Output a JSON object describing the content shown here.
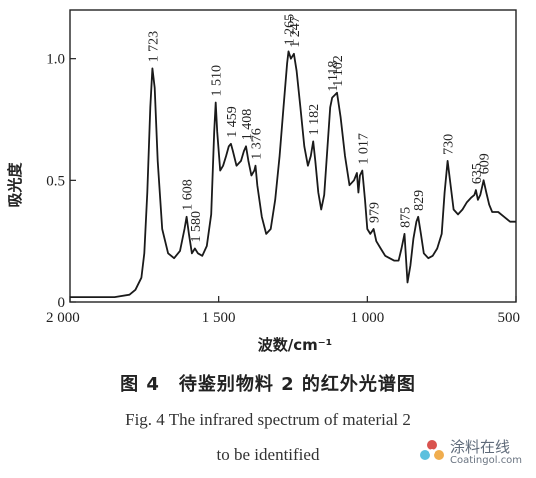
{
  "chart_data": {
    "type": "line",
    "xlabel": "波数/cm⁻¹",
    "ylabel": "吸光度",
    "xlim": [
      2000,
      500
    ],
    "ylim": [
      0,
      1.2
    ],
    "x_reversed": true,
    "grid": false,
    "legend": "none",
    "x_ticks": [
      {
        "value": 2000,
        "label": "2 000"
      },
      {
        "value": 1500,
        "label": "1 500"
      },
      {
        "value": 1000,
        "label": "1 000"
      },
      {
        "value": 500,
        "label": "500"
      }
    ],
    "y_ticks": [
      {
        "value": 0,
        "label": "0"
      },
      {
        "value": 0.5,
        "label": "0.5"
      },
      {
        "value": 1.0,
        "label": "1.0"
      }
    ],
    "series": [
      {
        "x": [
          2000,
          1850,
          1800,
          1780,
          1760,
          1750,
          1740,
          1730,
          1723,
          1715,
          1705,
          1690,
          1670,
          1650,
          1630,
          1615,
          1608,
          1600,
          1590,
          1580,
          1570,
          1555,
          1540,
          1525,
          1515,
          1510,
          1505,
          1495,
          1485,
          1475,
          1466,
          1459,
          1452,
          1440,
          1425,
          1415,
          1408,
          1400,
          1390,
          1380,
          1376,
          1370,
          1355,
          1340,
          1325,
          1310,
          1295,
          1282,
          1270,
          1265,
          1257,
          1247,
          1238,
          1225,
          1212,
          1200,
          1190,
          1182,
          1175,
          1165,
          1155,
          1145,
          1135,
          1125,
          1118,
          1110,
          1102,
          1090,
          1075,
          1060,
          1045,
          1035,
          1030,
          1025,
          1017,
          1008,
          1000,
          990,
          979,
          970,
          955,
          940,
          925,
          910,
          895,
          885,
          875,
          865,
          855,
          845,
          835,
          829,
          820,
          810,
          795,
          780,
          765,
          750,
          740,
          730,
          720,
          710,
          695,
          680,
          665,
          650,
          640,
          635,
          628,
          620,
          609,
          600,
          590,
          580,
          560,
          540,
          520,
          500
        ],
        "y": [
          0.02,
          0.02,
          0.03,
          0.05,
          0.1,
          0.2,
          0.45,
          0.8,
          0.96,
          0.88,
          0.58,
          0.3,
          0.2,
          0.18,
          0.21,
          0.3,
          0.35,
          0.28,
          0.2,
          0.22,
          0.2,
          0.19,
          0.23,
          0.36,
          0.7,
          0.82,
          0.7,
          0.54,
          0.56,
          0.6,
          0.64,
          0.65,
          0.62,
          0.56,
          0.58,
          0.62,
          0.64,
          0.58,
          0.52,
          0.54,
          0.56,
          0.48,
          0.35,
          0.28,
          0.3,
          0.42,
          0.6,
          0.8,
          0.98,
          1.03,
          1.0,
          1.02,
          0.95,
          0.8,
          0.64,
          0.56,
          0.6,
          0.66,
          0.58,
          0.45,
          0.38,
          0.44,
          0.62,
          0.8,
          0.84,
          0.85,
          0.86,
          0.76,
          0.6,
          0.48,
          0.5,
          0.53,
          0.45,
          0.52,
          0.54,
          0.42,
          0.3,
          0.28,
          0.3,
          0.25,
          0.22,
          0.19,
          0.18,
          0.17,
          0.17,
          0.22,
          0.28,
          0.08,
          0.15,
          0.26,
          0.33,
          0.35,
          0.28,
          0.2,
          0.18,
          0.19,
          0.22,
          0.28,
          0.45,
          0.58,
          0.48,
          0.38,
          0.36,
          0.38,
          0.41,
          0.43,
          0.44,
          0.46,
          0.42,
          0.44,
          0.5,
          0.45,
          0.4,
          0.37,
          0.37,
          0.35,
          0.33,
          0.33
        ]
      }
    ],
    "annotations": [
      {
        "label": "1 723",
        "x": 1723,
        "y": 0.96
      },
      {
        "label": "1 608",
        "x": 1608,
        "y": 0.35
      },
      {
        "label": "1 580",
        "x": 1580,
        "y": 0.22
      },
      {
        "label": "1 510",
        "x": 1510,
        "y": 0.82
      },
      {
        "label": "1 459",
        "x": 1459,
        "y": 0.65
      },
      {
        "label": "1 408",
        "x": 1408,
        "y": 0.64
      },
      {
        "label": "1 376",
        "x": 1376,
        "y": 0.56
      },
      {
        "label": "1 265",
        "x": 1265,
        "y": 1.03
      },
      {
        "label": "1 247",
        "x": 1247,
        "y": 1.02
      },
      {
        "label": "1 182",
        "x": 1182,
        "y": 0.66
      },
      {
        "label": "1 118",
        "x": 1118,
        "y": 0.84
      },
      {
        "label": "1 102",
        "x": 1102,
        "y": 0.86
      },
      {
        "label": "1 017",
        "x": 1017,
        "y": 0.54
      },
      {
        "label": "979",
        "x": 979,
        "y": 0.3
      },
      {
        "label": "875",
        "x": 875,
        "y": 0.28
      },
      {
        "label": "829",
        "x": 829,
        "y": 0.35
      },
      {
        "label": "730",
        "x": 730,
        "y": 0.58
      },
      {
        "label": "635",
        "x": 635,
        "y": 0.46
      },
      {
        "label": "609",
        "x": 609,
        "y": 0.5
      }
    ]
  },
  "caption": {
    "cn": "图 4　待鉴别物料 2 的红外光谱图",
    "en_line1": "Fig. 4 The infrared spectrum of material 2",
    "en_line2": "to be identified"
  },
  "watermark": {
    "cn": "涂料在线",
    "en": "Coatingol.com",
    "icon": "flower-logo",
    "color": "#c0392b"
  }
}
